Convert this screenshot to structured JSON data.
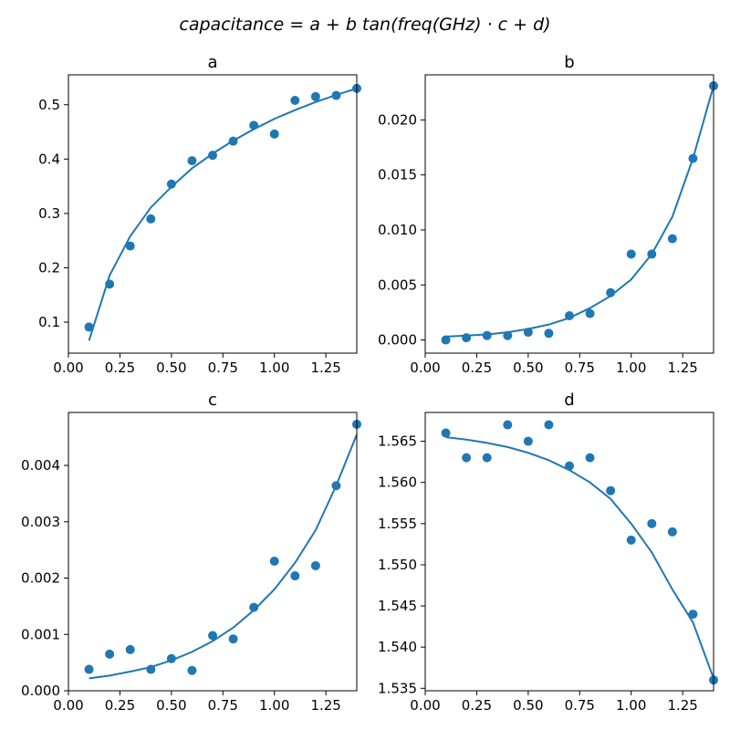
{
  "figure": {
    "suptitle": "capacitance = a + b tan(freq(GHz) · c + d)"
  },
  "chart_data": [
    {
      "type": "scatter",
      "title": "a",
      "xlabel": "",
      "ylabel": "",
      "xlim": [
        0.0,
        1.4
      ],
      "ylim": [
        0.043,
        0.555
      ],
      "xticks": [
        "0.00",
        "0.25",
        "0.50",
        "0.75",
        "1.00",
        "1.25"
      ],
      "yticks": [
        "0.1",
        "0.2",
        "0.3",
        "0.4",
        "0.5"
      ],
      "grid": false,
      "color": "#1f77b4",
      "points": {
        "x": [
          0.1,
          0.2,
          0.3,
          0.4,
          0.5,
          0.6,
          0.7,
          0.8,
          0.9,
          1.0,
          1.1,
          1.2,
          1.3,
          1.4
        ],
        "y": [
          0.091,
          0.17,
          0.24,
          0.29,
          0.354,
          0.397,
          0.407,
          0.433,
          0.462,
          0.446,
          0.508,
          0.515,
          0.517,
          0.53
        ]
      },
      "fit": {
        "x": [
          0.1,
          0.2,
          0.3,
          0.4,
          0.5,
          0.6,
          0.7,
          0.8,
          0.9,
          1.0,
          1.1,
          1.2,
          1.3,
          1.4
        ],
        "y": [
          0.066,
          0.186,
          0.258,
          0.311,
          0.349,
          0.383,
          0.41,
          0.434,
          0.455,
          0.474,
          0.49,
          0.505,
          0.518,
          0.53
        ]
      }
    },
    {
      "type": "scatter",
      "title": "b",
      "xlabel": "",
      "ylabel": "",
      "xlim": [
        0.0,
        1.4
      ],
      "ylim": [
        -0.0012,
        0.0241
      ],
      "xticks": [
        "0.00",
        "0.25",
        "0.50",
        "0.75",
        "1.00",
        "1.25"
      ],
      "yticks": [
        "0.000",
        "0.005",
        "0.010",
        "0.015",
        "0.020"
      ],
      "grid": false,
      "color": "#1f77b4",
      "points": {
        "x": [
          0.1,
          0.2,
          0.3,
          0.4,
          0.5,
          0.6,
          0.7,
          0.8,
          0.9,
          1.0,
          1.1,
          1.2,
          1.3,
          1.4
        ],
        "y": [
          0.0,
          0.0002,
          0.0004,
          0.0004,
          0.0007,
          0.0006,
          0.0022,
          0.0024,
          0.0043,
          0.0078,
          0.0078,
          0.0092,
          0.0165,
          0.0231
        ]
      },
      "fit": {
        "x": [
          0.1,
          0.2,
          0.3,
          0.4,
          0.5,
          0.6,
          0.7,
          0.8,
          0.9,
          1.0,
          1.1,
          1.2,
          1.3,
          1.4
        ],
        "y": [
          0.0003,
          0.0004,
          0.0005,
          0.0007,
          0.001,
          0.0014,
          0.002,
          0.0029,
          0.004,
          0.0055,
          0.0078,
          0.0112,
          0.0165,
          0.0231
        ]
      }
    },
    {
      "type": "scatter",
      "title": "c",
      "xlabel": "",
      "ylabel": "",
      "xlim": [
        0.0,
        1.4
      ],
      "ylim": [
        0.0,
        0.00494
      ],
      "xticks": [
        "0.00",
        "0.25",
        "0.50",
        "0.75",
        "1.00",
        "1.25"
      ],
      "yticks": [
        "0.000",
        "0.001",
        "0.002",
        "0.003",
        "0.004"
      ],
      "grid": false,
      "color": "#1f77b4",
      "points": {
        "x": [
          0.1,
          0.2,
          0.3,
          0.4,
          0.5,
          0.6,
          0.7,
          0.8,
          0.9,
          1.0,
          1.1,
          1.2,
          1.3,
          1.4
        ],
        "y": [
          0.00038,
          0.00065,
          0.00073,
          0.00038,
          0.00057,
          0.00036,
          0.00098,
          0.00092,
          0.00148,
          0.0023,
          0.00204,
          0.00222,
          0.00364,
          0.00473
        ]
      },
      "fit": {
        "x": [
          0.1,
          0.2,
          0.3,
          0.4,
          0.5,
          0.6,
          0.7,
          0.8,
          0.9,
          1.0,
          1.1,
          1.2,
          1.3,
          1.4
        ],
        "y": [
          0.00022,
          0.00027,
          0.00034,
          0.00042,
          0.00054,
          0.00069,
          0.00088,
          0.00112,
          0.00143,
          0.0018,
          0.00227,
          0.00285,
          0.00364,
          0.00455
        ]
      }
    },
    {
      "type": "scatter",
      "title": "d",
      "xlabel": "",
      "ylabel": "",
      "xlim": [
        0.0,
        1.4
      ],
      "ylim": [
        1.5347,
        1.5685
      ],
      "xticks": [
        "0.00",
        "0.25",
        "0.50",
        "0.75",
        "1.00",
        "1.25"
      ],
      "yticks": [
        "1.535",
        "1.540",
        "1.545",
        "1.550",
        "1.555",
        "1.560",
        "1.565"
      ],
      "grid": false,
      "color": "#1f77b4",
      "points": {
        "x": [
          0.1,
          0.2,
          0.3,
          0.4,
          0.5,
          0.6,
          0.7,
          0.8,
          0.9,
          1.0,
          1.1,
          1.2,
          1.3,
          1.4
        ],
        "y": [
          1.566,
          1.563,
          1.563,
          1.567,
          1.565,
          1.567,
          1.562,
          1.563,
          1.559,
          1.553,
          1.555,
          1.554,
          1.544,
          1.536
        ]
      },
      "fit": {
        "x": [
          0.1,
          0.2,
          0.3,
          0.4,
          0.5,
          0.6,
          0.7,
          0.8,
          0.9,
          1.0,
          1.1,
          1.2,
          1.3,
          1.4
        ],
        "y": [
          1.5655,
          1.5652,
          1.5648,
          1.5643,
          1.5636,
          1.5627,
          1.5615,
          1.56,
          1.558,
          1.555,
          1.5515,
          1.547,
          1.543,
          1.5362
        ]
      }
    }
  ]
}
